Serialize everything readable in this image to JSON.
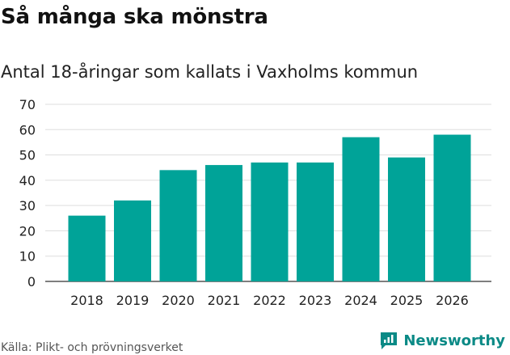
{
  "header": {
    "title": "Så många ska mönstra",
    "subtitle": "Antal 18-åringar som kallats i Vaxholms kommun"
  },
  "footer": {
    "source": "Källa: Plikt- och prövningsverket",
    "brand": "Newsworthy"
  },
  "colors": {
    "bar": "#00a398",
    "grid": "#dddddd",
    "brand": "#0b8a86"
  },
  "chart_data": {
    "type": "bar",
    "title": "Så många ska mönstra",
    "subtitle": "Antal 18-åringar som kallats i Vaxholms kommun",
    "xlabel": "",
    "ylabel": "",
    "categories": [
      "2018",
      "2019",
      "2020",
      "2021",
      "2022",
      "2023",
      "2024",
      "2025",
      "2026"
    ],
    "values": [
      26,
      32,
      44,
      46,
      47,
      47,
      57,
      49,
      58
    ],
    "ylim": [
      0,
      70
    ],
    "yticks": [
      0,
      10,
      20,
      30,
      40,
      50,
      60,
      70
    ],
    "grid": true
  }
}
